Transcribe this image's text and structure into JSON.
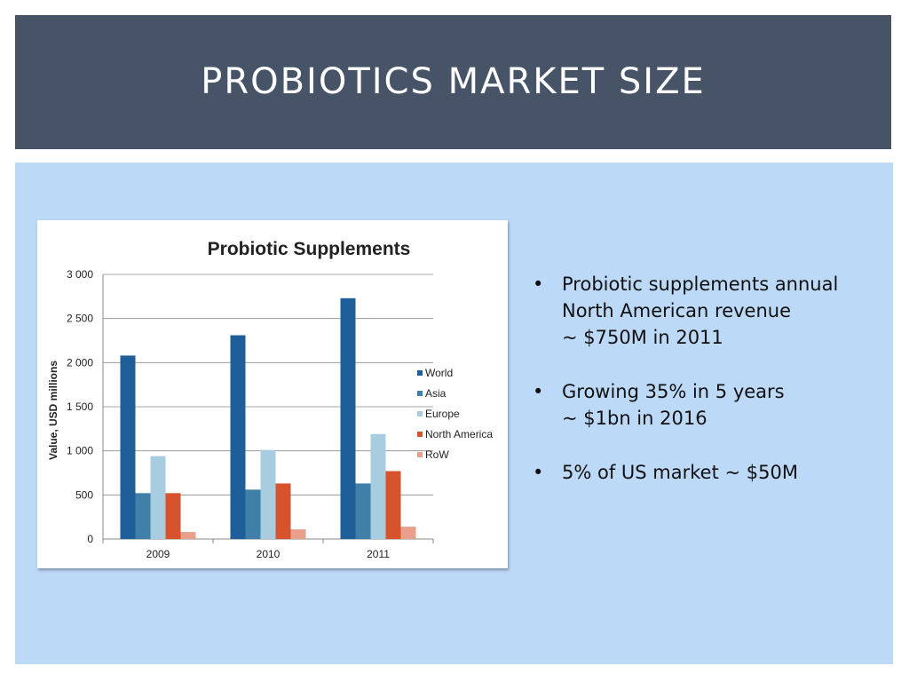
{
  "slide": {
    "title": "PROBIOTICS MARKET SIZE",
    "bullets": [
      {
        "lines": [
          "Probiotic supplements annual",
          "North American revenue",
          "~ $750M in 2011"
        ]
      },
      {
        "lines": [
          "Growing 35% in 5 years",
          "~ $1bn in 2016"
        ]
      },
      {
        "lines": [
          "5% of US market ~ $50M"
        ]
      }
    ]
  },
  "chart_data": {
    "type": "bar",
    "title": "Probiotic Supplements",
    "xlabel": "",
    "ylabel": "Value, USD millions",
    "ylim": [
      0,
      3000
    ],
    "yticks": [
      0,
      500,
      1000,
      1500,
      2000,
      2500,
      3000
    ],
    "ytick_labels": [
      "0",
      "500",
      "1 000",
      "1 500",
      "2 000",
      "2 500",
      "3 000"
    ],
    "categories": [
      "2009",
      "2010",
      "2011"
    ],
    "grid": true,
    "legend_position": "right",
    "series": [
      {
        "name": "World",
        "color": "#1f5f99",
        "values": [
          2080,
          2310,
          2730
        ]
      },
      {
        "name": "Asia",
        "color": "#3f7fa8",
        "values": [
          520,
          560,
          630
        ]
      },
      {
        "name": "Europe",
        "color": "#a9cde0",
        "values": [
          940,
          1010,
          1190
        ]
      },
      {
        "name": "North America",
        "color": "#d6532e",
        "values": [
          520,
          630,
          770
        ]
      },
      {
        "name": "RoW",
        "color": "#e8a08a",
        "values": [
          80,
          110,
          140
        ]
      }
    ]
  }
}
